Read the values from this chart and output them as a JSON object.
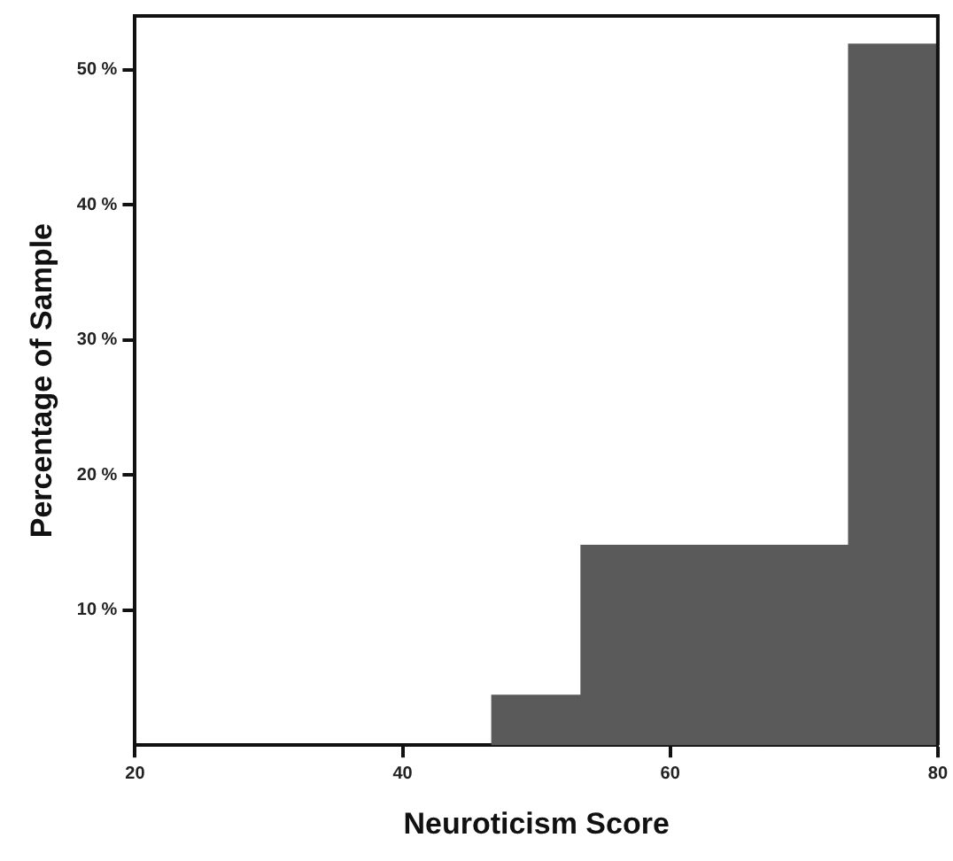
{
  "chart_data": {
    "type": "histogram",
    "xlabel": "Neuroticism Score",
    "ylabel": "Percentage of Sample",
    "bins": [
      46.67,
      53.33,
      60,
      66.67,
      73.33,
      80
    ],
    "values": [
      3.7,
      14.8,
      14.8,
      14.8,
      51.9
    ],
    "color": "#5a5a5a",
    "xlim": [
      20,
      80
    ],
    "xticks": [
      20,
      40,
      60,
      80
    ],
    "ylim": [
      0,
      54
    ],
    "yticks": [
      {
        "value": 10,
        "label": "10 %"
      },
      {
        "value": 20,
        "label": "20 %"
      },
      {
        "value": 30,
        "label": "30 %"
      },
      {
        "value": 40,
        "label": "40 %"
      },
      {
        "value": 50,
        "label": "50 %"
      }
    ],
    "grid": false,
    "legend": false
  }
}
